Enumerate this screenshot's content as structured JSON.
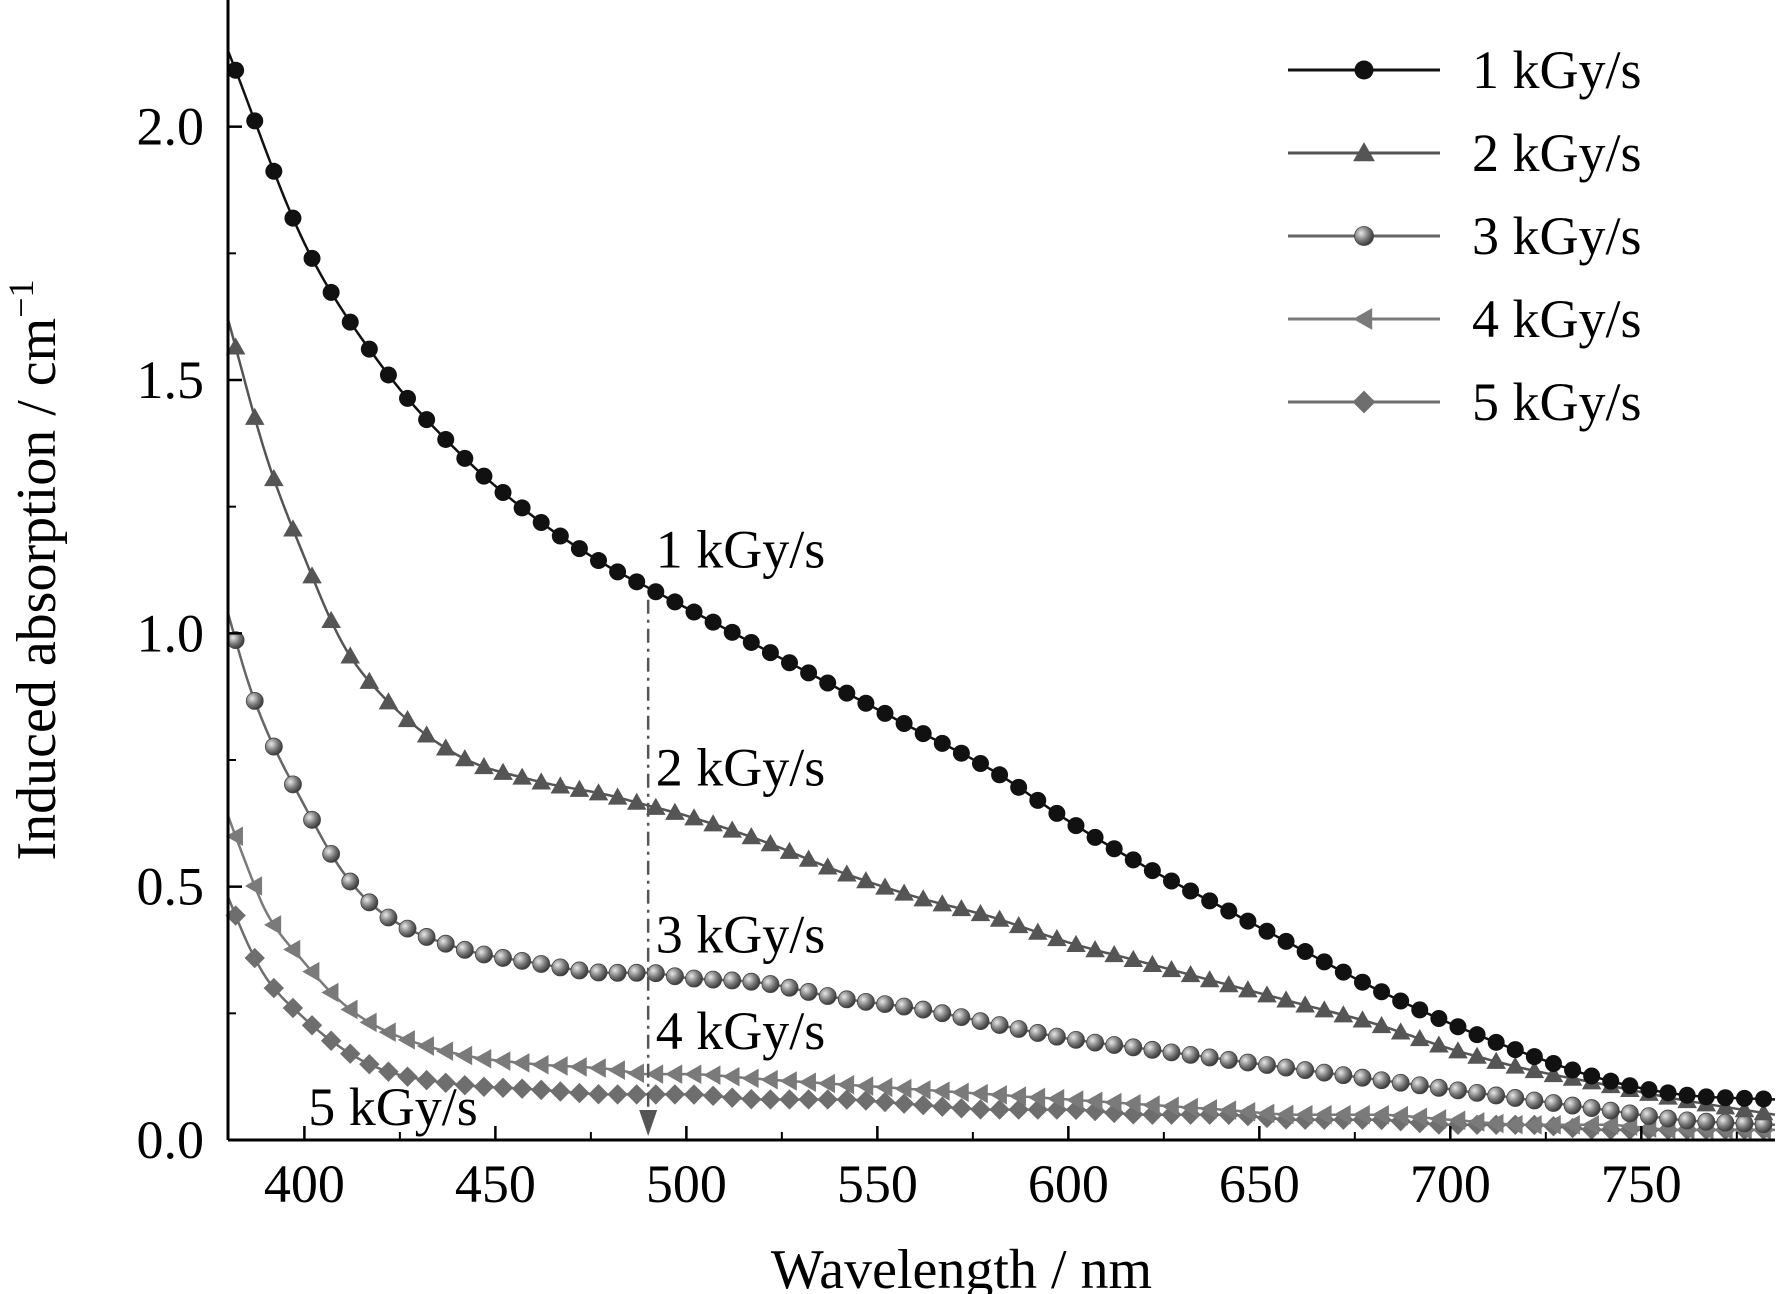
{
  "chart_data": {
    "type": "line",
    "xlabel": "Wavelength / nm",
    "ylabel_main": "Induced absorption / cm",
    "ylabel_sup": "−1",
    "xlim": [
      380,
      785
    ],
    "ylim": [
      0,
      2.25
    ],
    "xticks": [
      400,
      450,
      500,
      550,
      600,
      650,
      700,
      750
    ],
    "xtick_labels": [
      "400",
      "450",
      "500",
      "550",
      "600",
      "650",
      "700",
      "750"
    ],
    "yticks": [
      0.0,
      0.5,
      1.0,
      1.5,
      2.0
    ],
    "ytick_labels": [
      "0.0",
      "0.5",
      "1.0",
      "1.5",
      "2.0"
    ],
    "legend_position": "top-right",
    "marker_reference_wavelength": 490,
    "series": [
      {
        "name": "1 kGy/s",
        "marker": "circle",
        "color": "#111111",
        "x": [
          380,
          400,
          420,
          440,
          460,
          480,
          490,
          500,
          520,
          540,
          560,
          580,
          600,
          620,
          640,
          660,
          680,
          700,
          720,
          740,
          760,
          785
        ],
        "y": [
          2.15,
          1.77,
          1.53,
          1.36,
          1.23,
          1.13,
          1.09,
          1.05,
          0.97,
          0.89,
          0.81,
          0.73,
          0.63,
          0.54,
          0.46,
          0.38,
          0.3,
          0.23,
          0.17,
          0.12,
          0.09,
          0.08
        ]
      },
      {
        "name": "2 kGy/s",
        "marker": "triangle-up",
        "color": "#555555",
        "x": [
          380,
          390,
          400,
          410,
          420,
          440,
          460,
          480,
          490,
          500,
          520,
          540,
          560,
          580,
          600,
          620,
          640,
          660,
          680,
          700,
          720,
          740,
          760,
          785
        ],
        "y": [
          1.62,
          1.35,
          1.15,
          0.98,
          0.88,
          0.76,
          0.71,
          0.68,
          0.66,
          0.64,
          0.59,
          0.53,
          0.48,
          0.44,
          0.39,
          0.35,
          0.31,
          0.27,
          0.23,
          0.18,
          0.14,
          0.11,
          0.08,
          0.05
        ]
      },
      {
        "name": "3 kGy/s",
        "marker": "sphere",
        "color": "#666666",
        "x": [
          380,
          385,
          390,
          400,
          410,
          420,
          440,
          460,
          480,
          490,
          500,
          520,
          540,
          560,
          580,
          600,
          620,
          640,
          660,
          680,
          700,
          720,
          740,
          760,
          785
        ],
        "y": [
          1.04,
          0.91,
          0.81,
          0.66,
          0.53,
          0.45,
          0.38,
          0.35,
          0.33,
          0.33,
          0.32,
          0.31,
          0.28,
          0.26,
          0.23,
          0.2,
          0.18,
          0.16,
          0.14,
          0.12,
          0.1,
          0.08,
          0.06,
          0.04,
          0.03
        ]
      },
      {
        "name": "4 kGy/s",
        "marker": "triangle-left",
        "color": "#7a7a7a",
        "x": [
          380,
          385,
          390,
          400,
          410,
          420,
          440,
          460,
          480,
          490,
          500,
          520,
          540,
          560,
          580,
          600,
          620,
          640,
          660,
          680,
          700,
          720,
          740,
          760,
          785
        ],
        "y": [
          0.64,
          0.54,
          0.45,
          0.35,
          0.27,
          0.22,
          0.17,
          0.15,
          0.14,
          0.13,
          0.13,
          0.12,
          0.11,
          0.1,
          0.09,
          0.08,
          0.07,
          0.06,
          0.05,
          0.05,
          0.04,
          0.03,
          0.03,
          0.02,
          0.02
        ]
      },
      {
        "name": "5 kGy/s",
        "marker": "diamond",
        "color": "#6e6e6e",
        "x": [
          380,
          385,
          390,
          400,
          410,
          420,
          440,
          460,
          480,
          490,
          500,
          520,
          540,
          560,
          580,
          600,
          620,
          640,
          660,
          680,
          700,
          720,
          740,
          760,
          785
        ],
        "y": [
          0.48,
          0.39,
          0.32,
          0.24,
          0.18,
          0.14,
          0.11,
          0.1,
          0.09,
          0.09,
          0.09,
          0.08,
          0.08,
          0.07,
          0.06,
          0.06,
          0.05,
          0.05,
          0.04,
          0.04,
          0.03,
          0.03,
          0.02,
          0.02,
          0.02
        ]
      }
    ],
    "annotations": [
      {
        "text": "1 kGy/s",
        "x": 492,
        "y": 1.13
      },
      {
        "text": "2 kGy/s",
        "x": 492,
        "y": 0.7
      },
      {
        "text": "3 kGy/s",
        "x": 492,
        "y": 0.37
      },
      {
        "text": "4 kGy/s",
        "x": 492,
        "y": 0.18
      },
      {
        "text": "5 kGy/s",
        "x": 401,
        "y": 0.03
      }
    ]
  }
}
